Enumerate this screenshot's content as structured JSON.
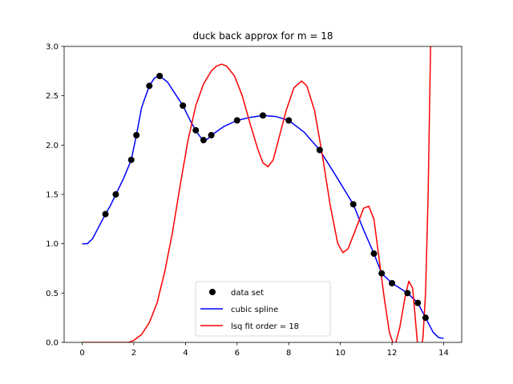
{
  "chart_data": {
    "type": "line",
    "title": "duck back approx for m = 18",
    "xlabel": "",
    "ylabel": "",
    "xlim": [
      -0.7,
      14.7
    ],
    "ylim": [
      0,
      3.0
    ],
    "xticks": [
      0,
      2,
      4,
      6,
      8,
      10,
      12,
      14
    ],
    "xtick_labels": [
      "0",
      "2",
      "4",
      "6",
      "8",
      "10",
      "12",
      "14"
    ],
    "yticks": [
      0.0,
      0.5,
      1.0,
      1.5,
      2.0,
      2.5,
      3.0
    ],
    "ytick_labels": [
      "0.0",
      "0.5",
      "1.0",
      "1.5",
      "2.0",
      "2.5",
      "3.0"
    ],
    "grid": false,
    "legend_position": "lower-center",
    "series": [
      {
        "name": "data set",
        "kind": "scatter",
        "color": "#000000",
        "points": [
          [
            0.9,
            1.3
          ],
          [
            1.3,
            1.5
          ],
          [
            1.9,
            1.85
          ],
          [
            2.1,
            2.1
          ],
          [
            2.6,
            2.6
          ],
          [
            3.0,
            2.7
          ],
          [
            3.9,
            2.4
          ],
          [
            4.4,
            2.15
          ],
          [
            4.7,
            2.05
          ],
          [
            5.0,
            2.1
          ],
          [
            6.0,
            2.25
          ],
          [
            7.0,
            2.3
          ],
          [
            8.0,
            2.25
          ],
          [
            9.2,
            1.95
          ],
          [
            10.5,
            1.4
          ],
          [
            11.3,
            0.9
          ],
          [
            11.6,
            0.7
          ],
          [
            12.0,
            0.6
          ],
          [
            12.6,
            0.5
          ],
          [
            13.0,
            0.4
          ],
          [
            13.3,
            0.25
          ]
        ]
      },
      {
        "name": "cubic spline",
        "kind": "line",
        "color": "#0000ff",
        "points": [
          [
            0.0,
            1.0
          ],
          [
            0.2,
            1.0
          ],
          [
            0.4,
            1.05
          ],
          [
            0.6,
            1.15
          ],
          [
            0.9,
            1.3
          ],
          [
            1.1,
            1.39
          ],
          [
            1.3,
            1.5
          ],
          [
            1.6,
            1.66
          ],
          [
            1.9,
            1.85
          ],
          [
            2.1,
            2.1
          ],
          [
            2.3,
            2.38
          ],
          [
            2.6,
            2.6
          ],
          [
            2.8,
            2.68
          ],
          [
            3.0,
            2.7
          ],
          [
            3.3,
            2.64
          ],
          [
            3.6,
            2.52
          ],
          [
            3.9,
            2.4
          ],
          [
            4.2,
            2.24
          ],
          [
            4.4,
            2.15
          ],
          [
            4.55,
            2.09
          ],
          [
            4.7,
            2.05
          ],
          [
            4.85,
            2.06
          ],
          [
            5.0,
            2.1
          ],
          [
            5.5,
            2.19
          ],
          [
            6.0,
            2.25
          ],
          [
            6.5,
            2.28
          ],
          [
            7.0,
            2.3
          ],
          [
            7.5,
            2.29
          ],
          [
            8.0,
            2.25
          ],
          [
            8.6,
            2.13
          ],
          [
            9.2,
            1.95
          ],
          [
            9.8,
            1.7
          ],
          [
            10.5,
            1.4
          ],
          [
            10.9,
            1.14
          ],
          [
            11.3,
            0.9
          ],
          [
            11.6,
            0.7
          ],
          [
            12.0,
            0.6
          ],
          [
            12.3,
            0.55
          ],
          [
            12.6,
            0.5
          ],
          [
            13.0,
            0.4
          ],
          [
            13.3,
            0.25
          ],
          [
            13.6,
            0.1
          ],
          [
            13.8,
            0.05
          ],
          [
            14.0,
            0.04
          ]
        ]
      },
      {
        "name": "lsq fit order = 18",
        "kind": "line",
        "color": "#ff0000",
        "points": [
          [
            0.0,
            0.0
          ],
          [
            1.0,
            0.0
          ],
          [
            1.8,
            0.0
          ],
          [
            2.0,
            0.02
          ],
          [
            2.3,
            0.08
          ],
          [
            2.6,
            0.2
          ],
          [
            2.9,
            0.4
          ],
          [
            3.2,
            0.72
          ],
          [
            3.5,
            1.12
          ],
          [
            3.8,
            1.6
          ],
          [
            4.1,
            2.05
          ],
          [
            4.4,
            2.4
          ],
          [
            4.7,
            2.62
          ],
          [
            5.0,
            2.75
          ],
          [
            5.2,
            2.8
          ],
          [
            5.4,
            2.82
          ],
          [
            5.6,
            2.8
          ],
          [
            5.9,
            2.7
          ],
          [
            6.2,
            2.5
          ],
          [
            6.5,
            2.22
          ],
          [
            6.8,
            1.96
          ],
          [
            7.0,
            1.82
          ],
          [
            7.2,
            1.78
          ],
          [
            7.4,
            1.85
          ],
          [
            7.6,
            2.05
          ],
          [
            7.9,
            2.35
          ],
          [
            8.2,
            2.58
          ],
          [
            8.5,
            2.65
          ],
          [
            8.7,
            2.6
          ],
          [
            9.0,
            2.35
          ],
          [
            9.3,
            1.9
          ],
          [
            9.6,
            1.4
          ],
          [
            9.9,
            1.0
          ],
          [
            10.1,
            0.91
          ],
          [
            10.3,
            0.95
          ],
          [
            10.6,
            1.15
          ],
          [
            10.9,
            1.36
          ],
          [
            11.1,
            1.38
          ],
          [
            11.3,
            1.25
          ],
          [
            11.5,
            0.85
          ],
          [
            11.7,
            0.45
          ],
          [
            11.9,
            0.1
          ],
          [
            12.1,
            -0.05
          ],
          [
            12.3,
            0.15
          ],
          [
            12.5,
            0.45
          ],
          [
            12.65,
            0.62
          ],
          [
            12.8,
            0.55
          ],
          [
            12.95,
            0.1
          ],
          [
            13.05,
            -0.2
          ],
          [
            13.2,
            0.05
          ],
          [
            13.3,
            0.5
          ],
          [
            13.4,
            1.5
          ],
          [
            13.5,
            3.1
          ]
        ]
      }
    ]
  }
}
